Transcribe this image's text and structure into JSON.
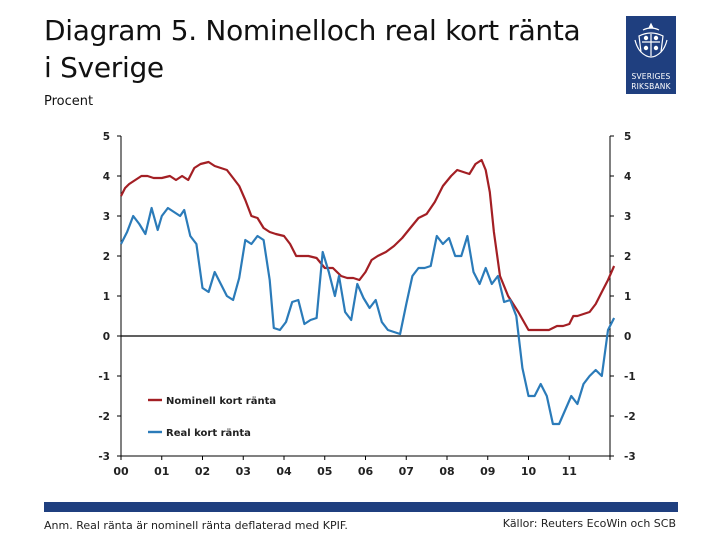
{
  "header": {
    "title_line1": "Diagram 5. Nominelloch real kort ränta",
    "title_line2": "i Sverige",
    "unit": "Procent"
  },
  "logo": {
    "line1": "SVERIGES",
    "line2": "RIKSBANK"
  },
  "footer": {
    "note": "Anm. Real ränta är nominell ränta deflaterad med KPIF.",
    "source": "Källor: Reuters EcoWin och SCB"
  },
  "colors": {
    "nominal": "#a31f24",
    "real": "#2b7bb9",
    "brand": "#1f3f7f"
  },
  "chart_data": {
    "type": "line",
    "title": "Diagram 5. Nominelloch real kort ränta i Sverige",
    "ylabel": "Procent",
    "ylim": [
      -3,
      5
    ],
    "xlim": [
      2000,
      2012
    ],
    "x_ticks": [
      2000,
      2002,
      2004,
      2006,
      2008,
      2010,
      2012
    ],
    "x_tick_labels": [
      "00",
      "01",
      "02",
      "03",
      "04",
      "05",
      "06",
      "07",
      "08",
      "09",
      "10",
      "11"
    ],
    "x_tick_positions": [
      2000,
      2001,
      2002,
      2003,
      2004,
      2005,
      2006,
      2007,
      2008,
      2009,
      2010,
      2011
    ],
    "y_ticks": [
      5,
      4,
      3,
      2,
      1,
      0,
      -1,
      -2,
      -3
    ],
    "y_tick_labels": [
      "5",
      "4",
      "3",
      "2",
      "1",
      "0",
      "-1",
      "-2",
      "-3"
    ],
    "legend": [
      "Nominell kort ränta",
      "Real kort ränta"
    ],
    "series": [
      {
        "name": "Nominell kort ränta",
        "x": [
          2000,
          2000.1,
          2000.2,
          2000.35,
          2000.5,
          2000.65,
          2000.8,
          2001.0,
          2001.2,
          2001.35,
          2001.5,
          2001.65,
          2001.8,
          2001.95,
          2002.15,
          2002.3,
          2002.45,
          2002.6,
          2002.75,
          2002.9,
          2003.05,
          2003.2,
          2003.35,
          2003.5,
          2003.65,
          2003.8,
          2004.0,
          2004.15,
          2004.3,
          2004.45,
          2004.6,
          2004.8,
          2005.0,
          2005.2,
          2005.4,
          2005.55,
          2005.7,
          2005.85,
          2006.0,
          2006.15,
          2006.3,
          2006.5,
          2006.7,
          2006.9,
          2007.1,
          2007.3,
          2007.5,
          2007.7,
          2007.9,
          2008.1,
          2008.25,
          2008.4,
          2008.55,
          2008.7,
          2008.85,
          2008.95,
          2009.05,
          2009.15,
          2009.3,
          2009.5,
          2009.75,
          2010.0,
          2010.2,
          2010.35,
          2010.5,
          2010.7,
          2010.85,
          2011.0,
          2011.1
        ],
        "values": [
          3.5,
          3.7,
          3.8,
          3.9,
          4.0,
          4.0,
          3.95,
          3.95,
          4.0,
          3.9,
          4.0,
          3.9,
          4.2,
          4.3,
          4.35,
          4.25,
          4.2,
          4.15,
          3.95,
          3.75,
          3.4,
          3.0,
          2.95,
          2.7,
          2.6,
          2.55,
          2.5,
          2.3,
          2.0,
          2.0,
          2.0,
          1.95,
          1.7,
          1.7,
          1.5,
          1.45,
          1.45,
          1.4,
          1.6,
          1.9,
          2.0,
          2.1,
          2.25,
          2.45,
          2.7,
          2.95,
          3.05,
          3.35,
          3.75,
          4.0,
          4.15,
          4.1,
          4.05,
          4.3,
          4.4,
          4.15,
          3.6,
          2.6,
          1.5,
          1.0,
          0.6,
          0.15,
          0.15,
          0.15,
          0.15,
          0.25,
          0.25,
          0.3,
          0.5
        ],
        "x_extra": [
          2011.2,
          2011.35,
          2011.5,
          2011.65,
          2011.8,
          2011.95,
          2012.1
        ],
        "values_extra": [
          0.5,
          0.55,
          0.6,
          0.8,
          1.1,
          1.4,
          1.75
        ]
      },
      {
        "name": "Real kort ränta",
        "x": [
          2000,
          2000.15,
          2000.3,
          2000.45,
          2000.6,
          2000.75,
          2000.9,
          2001.0,
          2001.15,
          2001.3,
          2001.45,
          2001.55,
          2001.7,
          2001.85,
          2002.0,
          2002.15,
          2002.3,
          2002.45,
          2002.6,
          2002.75,
          2002.9,
          2003.05,
          2003.2,
          2003.35,
          2003.5,
          2003.65,
          2003.75,
          2003.9,
          2004.05,
          2004.2,
          2004.35,
          2004.5,
          2004.65,
          2004.8,
          2004.95,
          2005.1,
          2005.25,
          2005.35,
          2005.5,
          2005.65,
          2005.8,
          2005.95,
          2006.1,
          2006.25,
          2006.4,
          2006.55,
          2006.7,
          2006.85,
          2007.0,
          2007.15,
          2007.3,
          2007.45,
          2007.6,
          2007.75,
          2007.9,
          2008.05,
          2008.2,
          2008.35,
          2008.5,
          2008.65,
          2008.8,
          2008.95,
          2009.1,
          2009.25,
          2009.4,
          2009.55,
          2009.7,
          2009.85,
          2010.0,
          2010.15,
          2010.3,
          2010.45,
          2010.6,
          2010.75,
          2010.9,
          2011.05,
          2011.2,
          2011.35,
          2011.5,
          2011.65,
          2011.8,
          2011.95,
          2012.1
        ],
        "values": [
          2.3,
          2.6,
          3.0,
          2.8,
          2.55,
          3.2,
          2.65,
          3.0,
          3.2,
          3.1,
          3.0,
          3.15,
          2.5,
          2.3,
          1.2,
          1.1,
          1.6,
          1.3,
          1.0,
          0.9,
          1.45,
          2.4,
          2.3,
          2.5,
          2.4,
          1.4,
          0.2,
          0.15,
          0.35,
          0.85,
          0.9,
          0.3,
          0.4,
          0.45,
          2.1,
          1.6,
          1.0,
          1.5,
          0.6,
          0.4,
          1.3,
          0.95,
          0.7,
          0.9,
          0.35,
          0.15,
          0.1,
          0.05,
          0.8,
          1.5,
          1.7,
          1.7,
          1.75,
          2.5,
          2.3,
          2.45,
          2.0,
          2.0,
          2.5,
          1.6,
          1.3,
          1.7,
          1.3,
          1.5,
          0.85,
          0.9,
          0.5,
          -0.8,
          -1.5,
          -1.5,
          -1.2,
          -1.5,
          -2.2,
          -2.2,
          -1.85,
          -1.5,
          -1.7,
          -1.2,
          -1.0,
          -0.85,
          -1.0,
          0.15,
          0.45
        ]
      }
    ]
  }
}
